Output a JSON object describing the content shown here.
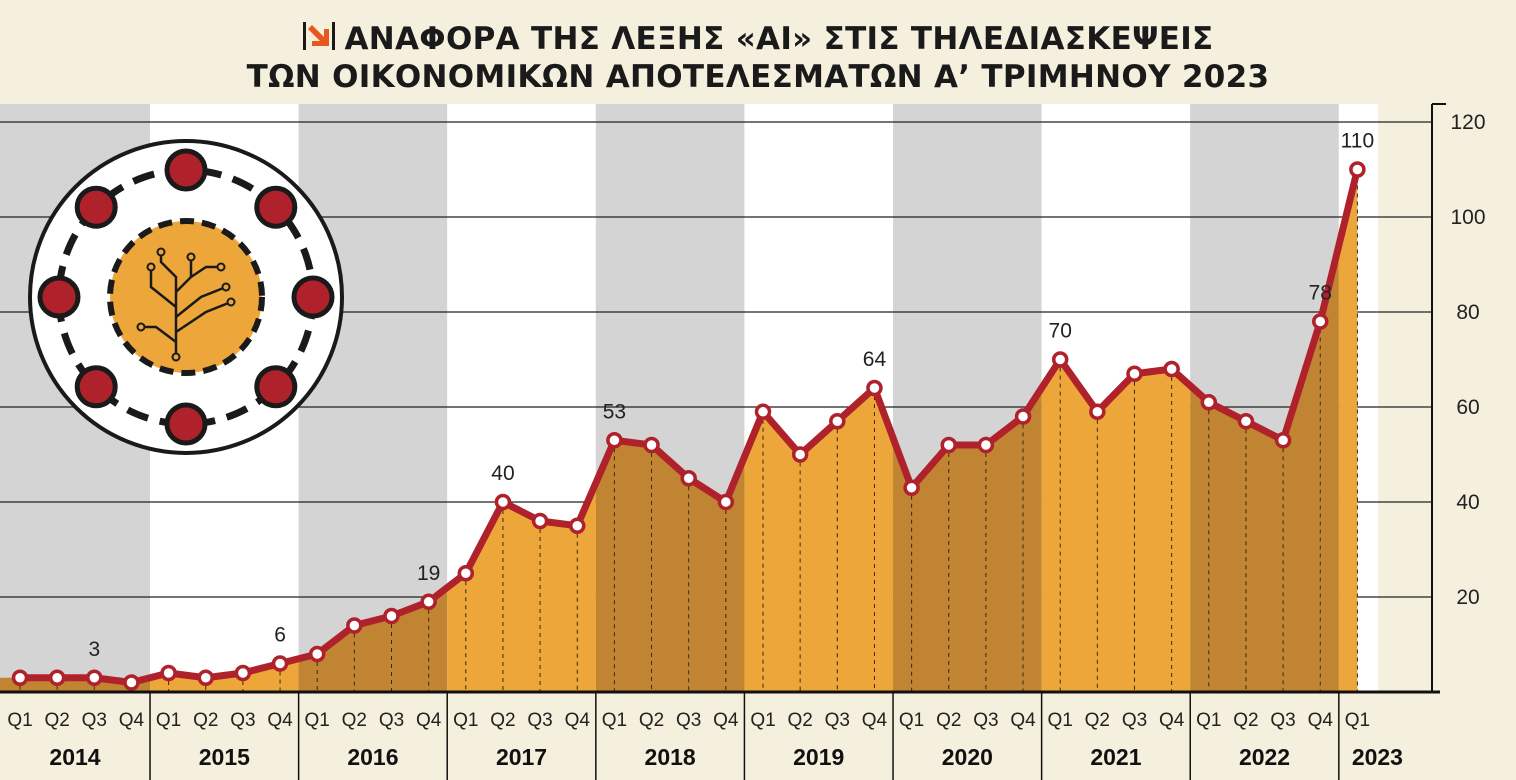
{
  "header": {
    "title_line1": "ΑΝΑΦΟΡΑ ΤΗΣ ΛΕΞΗΣ «AI» ΣΤΙΣ ΤΗΛΕΔΙΑΣΚΕΨΕΙΣ",
    "title_line2": "ΤΩΝ ΟΙΚΟΝΟΜΙΚΩΝ ΑΠΟΤΕΛΕΣΜΑΤΩΝ Α’ ΤΡΙΜΗΝΟΥ 2023",
    "brand_icon": "arrow-logo-icon",
    "brand_color": "#e8581c"
  },
  "decoration": {
    "icon": "ai-circuit-brain-icon"
  },
  "chart_data": {
    "type": "area",
    "title": "ΑΝΑΦΟΡΑ ΤΗΣ ΛΕΞΗΣ «AI» ΣΤΙΣ ΤΗΛΕΔΙΑΣΚΕΨΕΙΣ ΤΩΝ ΟΙΚΟΝΟΜΙΚΩΝ ΑΠΟΤΕΛΕΣΜΑΤΩΝ Α’ ΤΡΙΜΗΝΟΥ 2023",
    "years": [
      "2014",
      "2015",
      "2016",
      "2017",
      "2018",
      "2019",
      "2020",
      "2021",
      "2022",
      "2023"
    ],
    "quarters": [
      "Q1",
      "Q2",
      "Q3",
      "Q4"
    ],
    "values": [
      3,
      3,
      3,
      2,
      4,
      3,
      4,
      6,
      8,
      14,
      16,
      19,
      25,
      40,
      36,
      35,
      53,
      52,
      45,
      40,
      59,
      50,
      57,
      64,
      43,
      52,
      52,
      58,
      70,
      59,
      67,
      68,
      61,
      57,
      53,
      78,
      110
    ],
    "data_labels": [
      {
        "index": 2,
        "text": "3"
      },
      {
        "index": 7,
        "text": "6"
      },
      {
        "index": 11,
        "text": "19"
      },
      {
        "index": 13,
        "text": "40"
      },
      {
        "index": 16,
        "text": "53"
      },
      {
        "index": 23,
        "text": "64"
      },
      {
        "index": 28,
        "text": "70"
      },
      {
        "index": 35,
        "text": "78"
      },
      {
        "index": 36,
        "text": "110"
      }
    ],
    "yticks": [
      "20",
      "40",
      "60",
      "80",
      "100",
      "120"
    ],
    "ylim": [
      0,
      120
    ],
    "y_axis_side": "right",
    "grid": true,
    "colors": {
      "line": "#b0222b",
      "fill_light": "#eda63a",
      "fill_dark": "#c08432",
      "band_gray": "#d4d4d4",
      "band_white": "#ffffff"
    }
  }
}
